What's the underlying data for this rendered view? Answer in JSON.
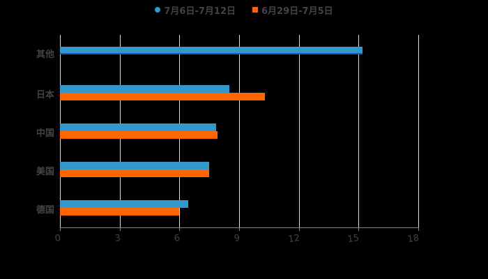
{
  "chart_data": {
    "type": "bar",
    "orientation": "horizontal",
    "title": "",
    "xlabel": "",
    "ylabel": "",
    "categories": [
      "其他",
      "日本",
      "中国",
      "美国",
      "德国"
    ],
    "series": [
      {
        "name": "7月6日-7月12日",
        "color": "#3399CC",
        "values": [
          15.2,
          8.5,
          7.85,
          7.5,
          6.45
        ]
      },
      {
        "name": "6月29日-7月5日",
        "color": "#FF6600",
        "values": [
          null,
          10.3,
          7.9,
          7.5,
          6.0
        ]
      }
    ],
    "xlim": [
      0,
      18
    ],
    "xticks": [
      "0",
      "3",
      "6",
      "9",
      "12",
      "15",
      "18"
    ],
    "grid": "vertical",
    "legend_position": "top"
  },
  "legend": {
    "items": [
      {
        "label": "7月6日-7月12日",
        "color": "#3399CC",
        "shape": "circle"
      },
      {
        "label": "6月29日-7月5日",
        "color": "#FF6600",
        "shape": "square"
      }
    ]
  }
}
